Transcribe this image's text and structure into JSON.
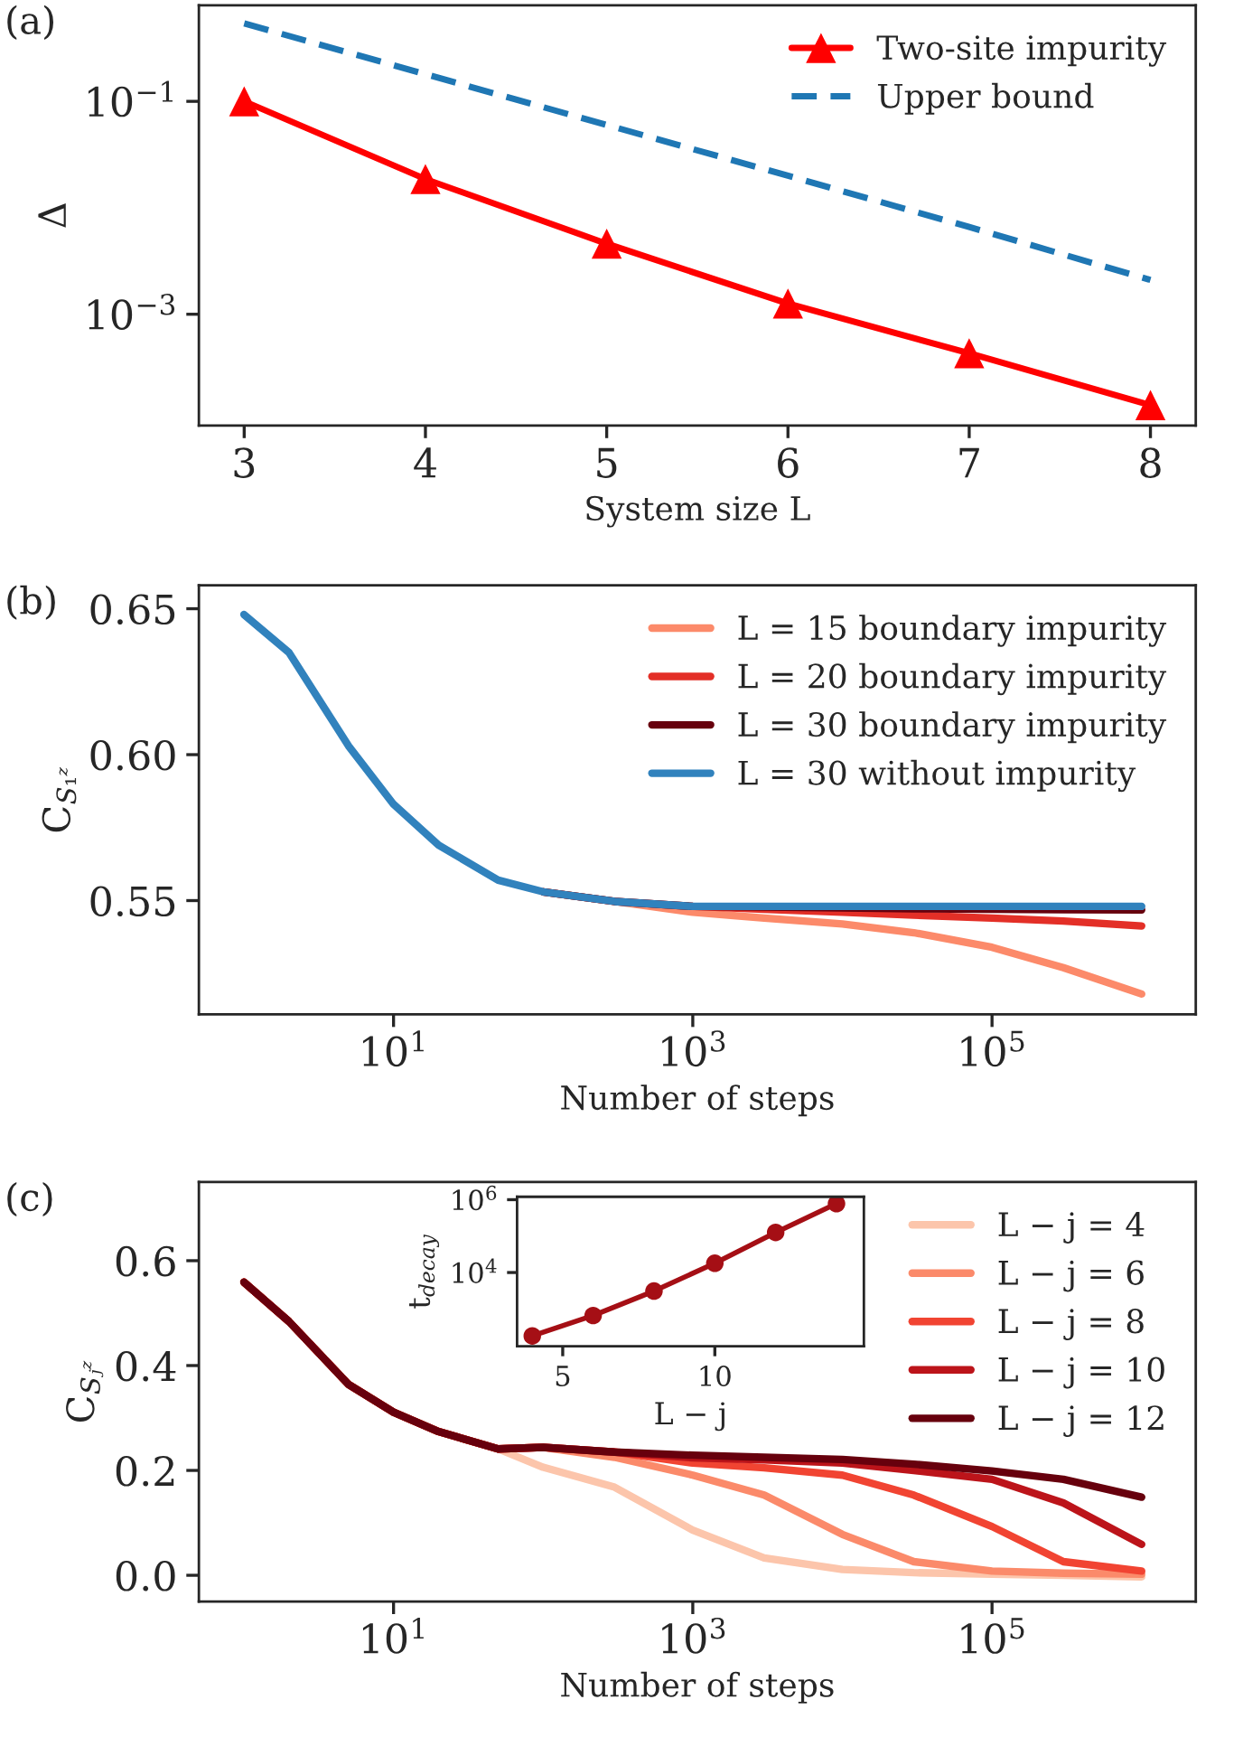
{
  "chart_data": [
    {
      "type": "line",
      "title": "(a)",
      "xlabel": "System size L",
      "ylabel": "Δ",
      "log": "y",
      "xlim": [
        2.75,
        8.25
      ],
      "ylim": [
        9e-05,
        0.8
      ],
      "xticks": [
        3,
        4,
        5,
        6,
        7,
        8
      ],
      "yticks": [
        {
          "value": 0.1,
          "label": "10$^{−1}$"
        },
        {
          "value": 0.001,
          "label": "10$^{−3}$"
        }
      ],
      "legend": "top right",
      "x": [
        3,
        4,
        5,
        6,
        7,
        8
      ],
      "series": [
        {
          "name": "Two-site impurity",
          "color": "#ff0000",
          "marker": "triangle",
          "line_style": "solid",
          "values": [
            0.1,
            0.0186,
            0.0046,
            0.00126,
            0.00043,
            0.00014
          ]
        },
        {
          "name": "Upper bound",
          "color": "#1f77b4",
          "marker": "none",
          "line_style": "dashed",
          "values": [
            0.54,
            0.18,
            0.06,
            0.02,
            0.0066,
            0.0021
          ]
        }
      ]
    },
    {
      "type": "line",
      "title": "(b)",
      "xlabel": "Number of steps",
      "ylabel": "C$_{S₁ᶻ}$",
      "log": "x",
      "xlim": [
        0.5,
        2300000
      ],
      "ylim": [
        0.511,
        0.658
      ],
      "xticks": [
        {
          "value": 10,
          "label": "10$^{1}$"
        },
        {
          "value": 1000,
          "label": "10$^{3}$"
        },
        {
          "value": 100000,
          "label": "10$^{5}$"
        }
      ],
      "yticks": [
        {
          "value": 0.55,
          "label": "0.55"
        },
        {
          "value": 0.6,
          "label": "0.60"
        },
        {
          "value": 0.65,
          "label": "0.65"
        }
      ],
      "legend": "top right",
      "x": [
        1,
        2,
        5,
        10,
        20,
        50,
        100,
        300,
        1000,
        3000,
        10000,
        30000,
        100000,
        300000,
        1000000
      ],
      "series": [
        {
          "name": "L = 15 boundary impurity",
          "color": "#fc8a6a",
          "values": [
            null,
            null,
            null,
            null,
            null,
            null,
            0.553,
            0.5497,
            0.546,
            0.544,
            0.542,
            0.539,
            0.534,
            0.527,
            0.518
          ]
        },
        {
          "name": "L = 20 boundary impurity",
          "color": "#e32f27",
          "values": [
            null,
            null,
            null,
            null,
            null,
            null,
            0.553,
            0.5497,
            0.548,
            0.547,
            0.546,
            0.545,
            0.544,
            0.543,
            0.5413
          ]
        },
        {
          "name": "L = 30 boundary impurity",
          "color": "#67000d",
          "values": [
            null,
            null,
            null,
            null,
            null,
            null,
            0.553,
            0.5497,
            0.548,
            0.5478,
            0.5475,
            0.5472,
            0.547,
            0.5469,
            0.5468
          ]
        },
        {
          "name": "L = 30 without impurity",
          "color": "#3182bd",
          "values": [
            0.648,
            0.635,
            0.603,
            0.583,
            0.569,
            0.557,
            0.553,
            0.5497,
            0.548,
            0.548,
            0.548,
            0.548,
            0.548,
            0.548,
            0.548
          ]
        }
      ]
    },
    {
      "type": "line",
      "title": "(c)",
      "xlabel": "Number of steps",
      "ylabel": "C$_{Sⱼᶻ}$",
      "log": "x",
      "xlim": [
        0.5,
        2300000
      ],
      "ylim": [
        -0.05,
        0.75
      ],
      "xticks": [
        {
          "value": 10,
          "label": "10$^{1}$"
        },
        {
          "value": 1000,
          "label": "10$^{3}$"
        },
        {
          "value": 100000,
          "label": "10$^{5}$"
        }
      ],
      "yticks": [
        {
          "value": 0,
          "label": "0.0"
        },
        {
          "value": 0.2,
          "label": "0.2"
        },
        {
          "value": 0.4,
          "label": "0.4"
        },
        {
          "value": 0.6,
          "label": "0.6"
        }
      ],
      "legend": "top right",
      "x": [
        1,
        2,
        5,
        10,
        20,
        50,
        100,
        300,
        1000,
        3000,
        10000,
        30000,
        100000,
        300000,
        1000000
      ],
      "series": [
        {
          "name": "L − j = 4",
          "color": "#fcc5ab",
          "values": [
            0.559,
            0.484,
            0.364,
            0.311,
            0.274,
            0.241,
            0.206,
            0.168,
            0.086,
            0.033,
            0.011,
            0.005,
            0.002,
            0.0,
            -0.003
          ]
        },
        {
          "name": "L − j = 6",
          "color": "#fb8a6a",
          "values": [
            0.559,
            0.484,
            0.364,
            0.311,
            0.274,
            0.241,
            0.244,
            0.225,
            0.191,
            0.153,
            0.078,
            0.026,
            0.008,
            0.004,
            0.002
          ]
        },
        {
          "name": "L − j = 8",
          "color": "#f14432",
          "values": [
            0.559,
            0.484,
            0.364,
            0.311,
            0.274,
            0.241,
            0.244,
            0.235,
            0.214,
            0.205,
            0.191,
            0.153,
            0.093,
            0.026,
            0.008
          ]
        },
        {
          "name": "L − j = 10",
          "color": "#bc141a",
          "values": [
            0.559,
            0.484,
            0.364,
            0.311,
            0.274,
            0.241,
            0.244,
            0.235,
            0.224,
            0.22,
            0.214,
            0.2,
            0.183,
            0.138,
            0.059
          ]
        },
        {
          "name": "L − j = 12",
          "color": "#67000d",
          "values": [
            0.559,
            0.484,
            0.364,
            0.311,
            0.274,
            0.241,
            0.244,
            0.235,
            0.229,
            0.225,
            0.221,
            0.212,
            0.199,
            0.183,
            0.149
          ]
        }
      ]
    },
    {
      "type": "line",
      "xlabel": "L − j",
      "ylabel": "t$_{decay}$",
      "log": "y",
      "xlim": [
        3.5,
        14.9
      ],
      "ylim": [
        95,
        1200000
      ],
      "xticks": [
        5,
        10
      ],
      "yticks": [
        {
          "value": 10000,
          "label": "10$^{4}$"
        },
        {
          "value": 1000000,
          "label": "10$^{6}$"
        }
      ],
      "x": [
        4,
        6,
        8,
        10,
        12,
        14
      ],
      "series": [
        {
          "color": "#a50f15",
          "marker": "circle",
          "values": [
            182,
            660,
            3100,
            18000,
            126000,
            780000
          ]
        }
      ]
    }
  ]
}
